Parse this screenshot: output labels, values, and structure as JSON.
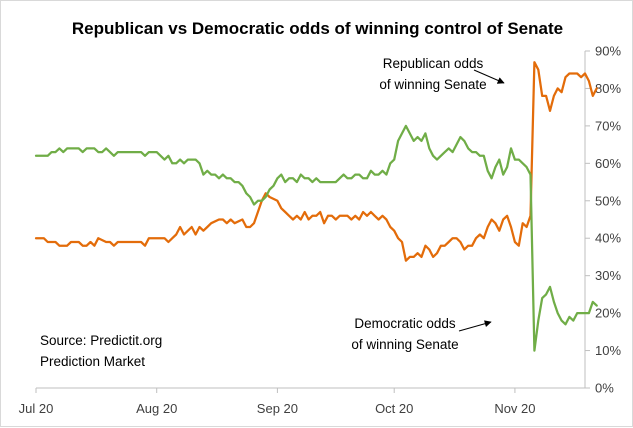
{
  "chart_data": {
    "type": "line",
    "title": "Republican vs Democratic odds of winning control of Senate",
    "xlabel": "",
    "ylabel": "",
    "x_range": [
      "2020-07-01",
      "2020-11-19"
    ],
    "x_ticks": [
      {
        "label": "Jul 20",
        "date": "2020-07-01"
      },
      {
        "label": "Aug 20",
        "date": "2020-08-01"
      },
      {
        "label": "Sep 20",
        "date": "2020-09-01"
      },
      {
        "label": "Oct 20",
        "date": "2020-10-01"
      },
      {
        "label": "Nov 20",
        "date": "2020-11-01"
      }
    ],
    "ylim": [
      0,
      90
    ],
    "y_ticks": [
      0,
      10,
      20,
      30,
      40,
      50,
      60,
      70,
      80,
      90
    ],
    "y_tick_labels": [
      "0%",
      "10%",
      "20%",
      "30%",
      "40%",
      "50%",
      "60%",
      "70%",
      "80%",
      "90%"
    ],
    "grid": false,
    "series": [
      {
        "name": "Republican",
        "color": "#e36c0a",
        "points": [
          [
            "2020-07-01",
            40
          ],
          [
            "2020-07-03",
            40
          ],
          [
            "2020-07-04",
            39
          ],
          [
            "2020-07-06",
            39
          ],
          [
            "2020-07-07",
            38
          ],
          [
            "2020-07-09",
            38
          ],
          [
            "2020-07-10",
            39
          ],
          [
            "2020-07-12",
            39
          ],
          [
            "2020-07-13",
            38
          ],
          [
            "2020-07-14",
            38
          ],
          [
            "2020-07-15",
            39
          ],
          [
            "2020-07-16",
            38
          ],
          [
            "2020-07-17",
            40
          ],
          [
            "2020-07-19",
            39
          ],
          [
            "2020-07-20",
            39
          ],
          [
            "2020-07-21",
            38
          ],
          [
            "2020-07-22",
            39
          ],
          [
            "2020-07-24",
            39
          ],
          [
            "2020-07-26",
            39
          ],
          [
            "2020-07-28",
            39
          ],
          [
            "2020-07-29",
            38
          ],
          [
            "2020-07-30",
            40
          ],
          [
            "2020-08-01",
            40
          ],
          [
            "2020-08-03",
            40
          ],
          [
            "2020-08-04",
            39
          ],
          [
            "2020-08-05",
            40
          ],
          [
            "2020-08-06",
            41
          ],
          [
            "2020-08-07",
            43
          ],
          [
            "2020-08-08",
            41
          ],
          [
            "2020-08-09",
            42
          ],
          [
            "2020-08-10",
            43
          ],
          [
            "2020-08-11",
            41
          ],
          [
            "2020-08-12",
            43
          ],
          [
            "2020-08-13",
            42
          ],
          [
            "2020-08-14",
            43
          ],
          [
            "2020-08-15",
            44
          ],
          [
            "2020-08-17",
            45
          ],
          [
            "2020-08-18",
            45
          ],
          [
            "2020-08-19",
            44
          ],
          [
            "2020-08-20",
            45
          ],
          [
            "2020-08-21",
            44
          ],
          [
            "2020-08-23",
            45
          ],
          [
            "2020-08-24",
            43
          ],
          [
            "2020-08-25",
            43
          ],
          [
            "2020-08-26",
            44
          ],
          [
            "2020-08-27",
            47
          ],
          [
            "2020-08-28",
            50
          ],
          [
            "2020-08-29",
            52
          ],
          [
            "2020-08-30",
            51
          ],
          [
            "2020-09-01",
            50
          ],
          [
            "2020-09-02",
            48
          ],
          [
            "2020-09-03",
            47
          ],
          [
            "2020-09-04",
            46
          ],
          [
            "2020-09-05",
            45
          ],
          [
            "2020-09-06",
            46
          ],
          [
            "2020-09-07",
            45
          ],
          [
            "2020-09-08",
            47
          ],
          [
            "2020-09-09",
            45
          ],
          [
            "2020-09-10",
            46
          ],
          [
            "2020-09-11",
            46
          ],
          [
            "2020-09-12",
            47
          ],
          [
            "2020-09-13",
            44
          ],
          [
            "2020-09-14",
            46
          ],
          [
            "2020-09-15",
            46
          ],
          [
            "2020-09-16",
            45
          ],
          [
            "2020-09-17",
            46
          ],
          [
            "2020-09-18",
            46
          ],
          [
            "2020-09-19",
            46
          ],
          [
            "2020-09-20",
            45
          ],
          [
            "2020-09-21",
            46
          ],
          [
            "2020-09-22",
            45
          ],
          [
            "2020-09-23",
            47
          ],
          [
            "2020-09-24",
            46
          ],
          [
            "2020-09-25",
            47
          ],
          [
            "2020-09-26",
            46
          ],
          [
            "2020-09-27",
            45
          ],
          [
            "2020-09-28",
            46
          ],
          [
            "2020-09-29",
            45
          ],
          [
            "2020-09-30",
            43
          ],
          [
            "2020-10-01",
            42
          ],
          [
            "2020-10-02",
            40
          ],
          [
            "2020-10-03",
            39
          ],
          [
            "2020-10-04",
            34
          ],
          [
            "2020-10-05",
            35
          ],
          [
            "2020-10-06",
            35
          ],
          [
            "2020-10-07",
            36
          ],
          [
            "2020-10-08",
            35
          ],
          [
            "2020-10-09",
            38
          ],
          [
            "2020-10-10",
            37
          ],
          [
            "2020-10-11",
            35
          ],
          [
            "2020-10-12",
            36
          ],
          [
            "2020-10-13",
            38
          ],
          [
            "2020-10-14",
            38
          ],
          [
            "2020-10-15",
            39
          ],
          [
            "2020-10-16",
            40
          ],
          [
            "2020-10-17",
            40
          ],
          [
            "2020-10-18",
            39
          ],
          [
            "2020-10-19",
            37
          ],
          [
            "2020-10-20",
            38
          ],
          [
            "2020-10-21",
            38
          ],
          [
            "2020-10-22",
            40
          ],
          [
            "2020-10-23",
            41
          ],
          [
            "2020-10-24",
            40
          ],
          [
            "2020-10-25",
            43
          ],
          [
            "2020-10-26",
            45
          ],
          [
            "2020-10-27",
            44
          ],
          [
            "2020-10-28",
            42
          ],
          [
            "2020-10-29",
            45
          ],
          [
            "2020-10-30",
            46
          ],
          [
            "2020-10-31",
            43
          ],
          [
            "2020-11-01",
            39
          ],
          [
            "2020-11-02",
            38
          ],
          [
            "2020-11-03",
            44
          ],
          [
            "2020-11-04",
            43
          ],
          [
            "2020-11-05",
            46
          ],
          [
            "2020-11-06",
            87
          ],
          [
            "2020-11-07",
            85
          ],
          [
            "2020-11-08",
            78
          ],
          [
            "2020-11-09",
            78
          ],
          [
            "2020-11-10",
            74
          ],
          [
            "2020-11-11",
            78
          ],
          [
            "2020-11-12",
            80
          ],
          [
            "2020-11-13",
            79
          ],
          [
            "2020-11-14",
            83
          ],
          [
            "2020-11-15",
            84
          ],
          [
            "2020-11-16",
            84
          ],
          [
            "2020-11-17",
            84
          ],
          [
            "2020-11-18",
            83
          ],
          [
            "2020-11-19",
            84
          ],
          [
            "2020-11-20",
            82
          ],
          [
            "2020-11-21",
            78
          ],
          [
            "2020-11-22",
            80
          ]
        ]
      },
      {
        "name": "Democratic",
        "color": "#70ad47",
        "points": [
          [
            "2020-07-01",
            62
          ],
          [
            "2020-07-03",
            62
          ],
          [
            "2020-07-04",
            62
          ],
          [
            "2020-07-05",
            63
          ],
          [
            "2020-07-06",
            63
          ],
          [
            "2020-07-07",
            64
          ],
          [
            "2020-07-08",
            63
          ],
          [
            "2020-07-09",
            64
          ],
          [
            "2020-07-10",
            64
          ],
          [
            "2020-07-12",
            64
          ],
          [
            "2020-07-13",
            63
          ],
          [
            "2020-07-14",
            64
          ],
          [
            "2020-07-16",
            64
          ],
          [
            "2020-07-17",
            63
          ],
          [
            "2020-07-18",
            63
          ],
          [
            "2020-07-19",
            64
          ],
          [
            "2020-07-20",
            63
          ],
          [
            "2020-07-21",
            62
          ],
          [
            "2020-07-22",
            63
          ],
          [
            "2020-07-24",
            63
          ],
          [
            "2020-07-26",
            63
          ],
          [
            "2020-07-28",
            63
          ],
          [
            "2020-07-29",
            62
          ],
          [
            "2020-07-30",
            63
          ],
          [
            "2020-08-01",
            63
          ],
          [
            "2020-08-02",
            62
          ],
          [
            "2020-08-03",
            61
          ],
          [
            "2020-08-04",
            62
          ],
          [
            "2020-08-05",
            60
          ],
          [
            "2020-08-06",
            60
          ],
          [
            "2020-08-07",
            61
          ],
          [
            "2020-08-08",
            60
          ],
          [
            "2020-08-09",
            61
          ],
          [
            "2020-08-11",
            61
          ],
          [
            "2020-08-12",
            60
          ],
          [
            "2020-08-13",
            57
          ],
          [
            "2020-08-14",
            58
          ],
          [
            "2020-08-15",
            57
          ],
          [
            "2020-08-16",
            57
          ],
          [
            "2020-08-17",
            56
          ],
          [
            "2020-08-18",
            57
          ],
          [
            "2020-08-19",
            56
          ],
          [
            "2020-08-20",
            56
          ],
          [
            "2020-08-21",
            55
          ],
          [
            "2020-08-22",
            55
          ],
          [
            "2020-08-23",
            54
          ],
          [
            "2020-08-24",
            52
          ],
          [
            "2020-08-25",
            51
          ],
          [
            "2020-08-26",
            49
          ],
          [
            "2020-08-27",
            50
          ],
          [
            "2020-08-28",
            50
          ],
          [
            "2020-08-29",
            51
          ],
          [
            "2020-08-30",
            53
          ],
          [
            "2020-08-31",
            54
          ],
          [
            "2020-09-01",
            56
          ],
          [
            "2020-09-02",
            57
          ],
          [
            "2020-09-03",
            55
          ],
          [
            "2020-09-04",
            56
          ],
          [
            "2020-09-05",
            56
          ],
          [
            "2020-09-06",
            55
          ],
          [
            "2020-09-07",
            57
          ],
          [
            "2020-09-08",
            56
          ],
          [
            "2020-09-09",
            56
          ],
          [
            "2020-09-10",
            55
          ],
          [
            "2020-09-11",
            56
          ],
          [
            "2020-09-12",
            55
          ],
          [
            "2020-09-14",
            55
          ],
          [
            "2020-09-16",
            55
          ],
          [
            "2020-09-17",
            56
          ],
          [
            "2020-09-18",
            57
          ],
          [
            "2020-09-19",
            56
          ],
          [
            "2020-09-20",
            56
          ],
          [
            "2020-09-21",
            57
          ],
          [
            "2020-09-22",
            57
          ],
          [
            "2020-09-23",
            56
          ],
          [
            "2020-09-24",
            56
          ],
          [
            "2020-09-25",
            58
          ],
          [
            "2020-09-26",
            57
          ],
          [
            "2020-09-27",
            57
          ],
          [
            "2020-09-28",
            58
          ],
          [
            "2020-09-29",
            57
          ],
          [
            "2020-09-30",
            60
          ],
          [
            "2020-10-01",
            61
          ],
          [
            "2020-10-02",
            66
          ],
          [
            "2020-10-03",
            68
          ],
          [
            "2020-10-04",
            70
          ],
          [
            "2020-10-05",
            68
          ],
          [
            "2020-10-06",
            66
          ],
          [
            "2020-10-07",
            67
          ],
          [
            "2020-10-08",
            66
          ],
          [
            "2020-10-09",
            68
          ],
          [
            "2020-10-10",
            64
          ],
          [
            "2020-10-11",
            62
          ],
          [
            "2020-10-12",
            61
          ],
          [
            "2020-10-13",
            62
          ],
          [
            "2020-10-14",
            63
          ],
          [
            "2020-10-15",
            64
          ],
          [
            "2020-10-16",
            63
          ],
          [
            "2020-10-17",
            65
          ],
          [
            "2020-10-18",
            67
          ],
          [
            "2020-10-19",
            66
          ],
          [
            "2020-10-20",
            64
          ],
          [
            "2020-10-21",
            63
          ],
          [
            "2020-10-22",
            63
          ],
          [
            "2020-10-23",
            62
          ],
          [
            "2020-10-24",
            62
          ],
          [
            "2020-10-25",
            58
          ],
          [
            "2020-10-26",
            56
          ],
          [
            "2020-10-27",
            59
          ],
          [
            "2020-10-28",
            61
          ],
          [
            "2020-10-29",
            57
          ],
          [
            "2020-10-30",
            59
          ],
          [
            "2020-10-31",
            64
          ],
          [
            "2020-11-01",
            61
          ],
          [
            "2020-11-02",
            61
          ],
          [
            "2020-11-03",
            60
          ],
          [
            "2020-11-04",
            59
          ],
          [
            "2020-11-05",
            57
          ],
          [
            "2020-11-06",
            10
          ],
          [
            "2020-11-07",
            18
          ],
          [
            "2020-11-08",
            24
          ],
          [
            "2020-11-09",
            25
          ],
          [
            "2020-11-10",
            27
          ],
          [
            "2020-11-11",
            23
          ],
          [
            "2020-11-12",
            20
          ],
          [
            "2020-11-13",
            18
          ],
          [
            "2020-11-14",
            17
          ],
          [
            "2020-11-15",
            19
          ],
          [
            "2020-11-16",
            18
          ],
          [
            "2020-11-17",
            20
          ],
          [
            "2020-11-18",
            20
          ],
          [
            "2020-11-19",
            20
          ],
          [
            "2020-11-20",
            20
          ],
          [
            "2020-11-21",
            23
          ],
          [
            "2020-11-22",
            22
          ]
        ]
      }
    ],
    "annotations": [
      {
        "lines": [
          "Republican odds",
          "of winning Senate"
        ],
        "series": "Republican"
      },
      {
        "lines": [
          "Democratic odds",
          "of winning Senate"
        ],
        "series": "Democratic"
      },
      {
        "lines": [
          "Source:  Predictit.org",
          "Prediction Market"
        ]
      }
    ]
  }
}
